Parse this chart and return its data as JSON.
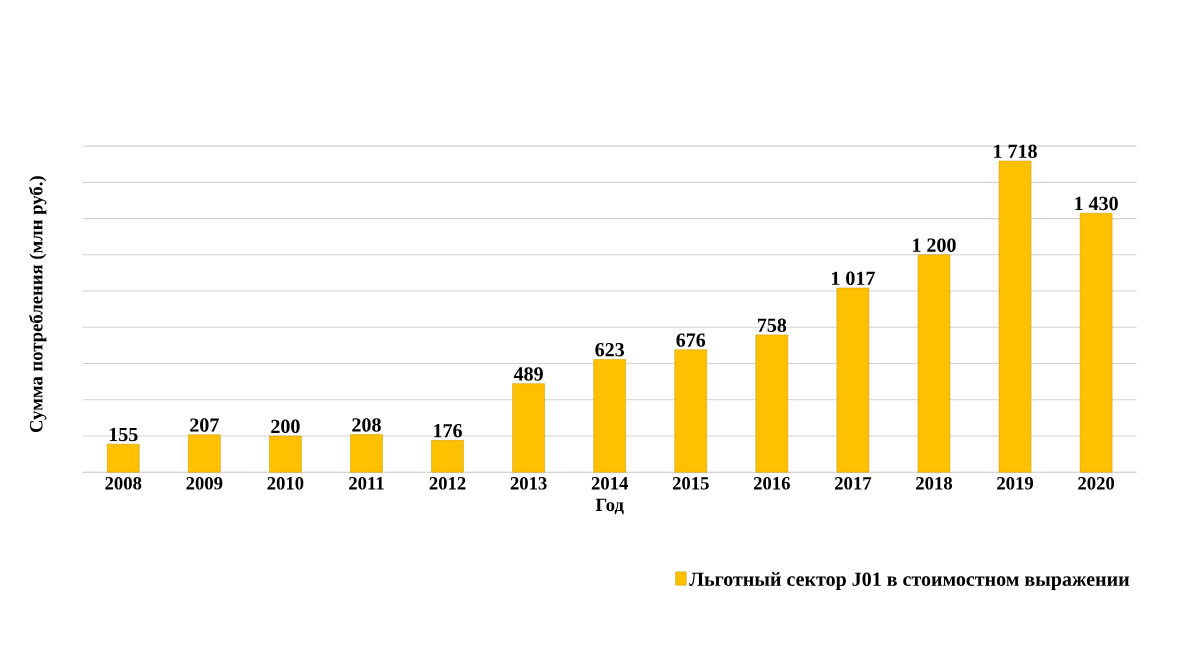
{
  "chart_data": {
    "type": "bar",
    "xlabel": "Год",
    "ylabel": "Сумма потребления   (млн руб.)",
    "categories": [
      "2008",
      "2009",
      "2010",
      "2011",
      "2012",
      "2013",
      "2014",
      "2015",
      "2016",
      "2017",
      "2018",
      "2019",
      "2020"
    ],
    "series": [
      {
        "name": "Льготный сектор J01 в стоимостном выражении",
        "color": "#ffc000",
        "values": [
          155,
          207,
          200,
          208,
          176,
          489,
          623,
          676,
          758,
          1017,
          1200,
          1718,
          1430
        ],
        "value_labels": [
          "155",
          "207",
          "200",
          "208",
          "176",
          "489",
          "623",
          "676",
          "758",
          "1 017",
          "1 200",
          "1 718",
          "1 430"
        ]
      }
    ],
    "grid": "y",
    "legend": "bottom right",
    "tick_labels": "x"
  }
}
